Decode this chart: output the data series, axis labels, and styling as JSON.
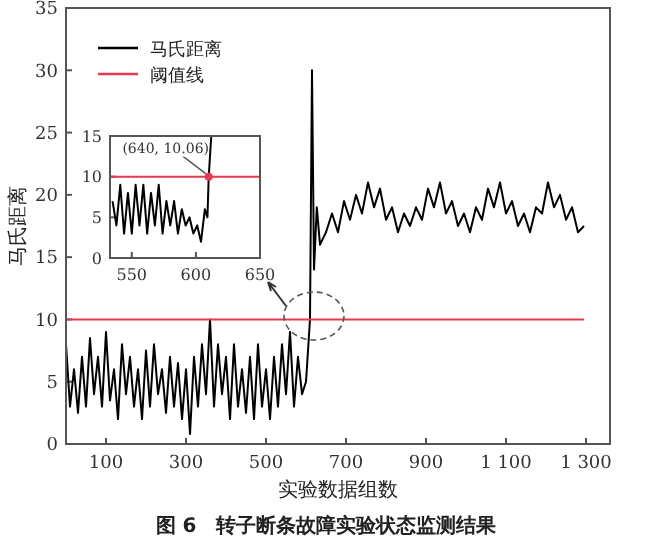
{
  "chart_data": [
    {
      "type": "line",
      "ylabel": "马氏距离",
      "xlabel": "实验数据组数",
      "annotations": [
        "图 6　转子断条故障实验状态监测结果"
      ],
      "xlim": [
        0,
        1360
      ],
      "ylim": [
        0,
        35
      ],
      "xticks": [
        100,
        300,
        500,
        700,
        900,
        {
          "value": 1100,
          "label": "1 100"
        },
        {
          "value": 1300,
          "label": "1 300"
        }
      ],
      "yticks": [
        0,
        5,
        10,
        15,
        20,
        25,
        30,
        35
      ],
      "legend": "top left",
      "grid": false,
      "series": [
        {
          "name": "马氏距离",
          "color": "#000000",
          "x": [
            0,
            10,
            20,
            30,
            40,
            50,
            60,
            70,
            80,
            90,
            100,
            110,
            120,
            130,
            140,
            150,
            160,
            170,
            180,
            190,
            200,
            210,
            220,
            230,
            240,
            250,
            260,
            270,
            280,
            290,
            300,
            310,
            320,
            330,
            340,
            350,
            360,
            370,
            380,
            390,
            400,
            410,
            420,
            430,
            440,
            450,
            460,
            470,
            480,
            490,
            500,
            510,
            520,
            530,
            540,
            550,
            560,
            570,
            580,
            590,
            600,
            610,
            615,
            620,
            627,
            635,
            650,
            665,
            680,
            695,
            710,
            725,
            740,
            755,
            770,
            785,
            800,
            815,
            830,
            845,
            860,
            875,
            890,
            905,
            920,
            935,
            950,
            965,
            980,
            995,
            1010,
            1025,
            1040,
            1055,
            1070,
            1085,
            1100,
            1115,
            1130,
            1145,
            1160,
            1175,
            1190,
            1205,
            1220,
            1235,
            1250,
            1265,
            1280,
            1295
          ],
          "values": [
            8,
            3,
            6,
            2.5,
            7,
            3,
            8.5,
            4,
            7,
            3,
            9,
            3.5,
            6,
            2,
            8,
            4,
            7,
            3,
            6,
            2,
            7.5,
            3,
            8,
            4,
            6,
            2.5,
            7,
            3,
            6.5,
            2,
            6,
            0.8,
            7,
            3,
            8,
            4,
            10,
            3,
            8,
            4,
            7,
            2,
            8,
            3,
            6,
            2.5,
            7,
            2,
            8,
            3,
            6,
            2,
            7,
            3,
            8,
            4,
            9,
            3,
            7,
            4,
            5,
            10,
            30,
            14,
            19,
            16,
            17,
            18.5,
            17,
            19.5,
            18,
            20,
            18.5,
            21,
            19,
            20.5,
            18,
            19,
            17,
            18.5,
            17.5,
            19,
            18,
            20.5,
            19,
            21,
            18.5,
            19.5,
            17.5,
            18.5,
            17,
            19,
            18,
            20.5,
            19,
            21,
            18.5,
            19.5,
            17.5,
            18.5,
            17,
            19,
            18.5,
            21,
            19,
            20,
            18,
            19,
            17,
            17.5
          ]
        },
        {
          "name": "阈值线",
          "color": "#e8384f",
          "x": [
            0,
            1295
          ],
          "values": [
            10,
            10
          ]
        }
      ]
    },
    {
      "type": "line",
      "xlim": [
        533,
        650
      ],
      "ylim": [
        0,
        15
      ],
      "xticks": [
        550,
        600,
        650
      ],
      "yticks": [
        0,
        5,
        10,
        15
      ],
      "grid": false,
      "annotations": [
        {
          "text": "(640, 10.06)",
          "x": 610,
          "y": 10
        }
      ],
      "series": [
        {
          "color": "#000000",
          "x": [
            535,
            538,
            541,
            544,
            547,
            550,
            553,
            556,
            559,
            562,
            565,
            568,
            571,
            574,
            577,
            580,
            583,
            586,
            589,
            592,
            595,
            598,
            601,
            604,
            607,
            609,
            610,
            612
          ],
          "values": [
            7,
            4,
            9,
            3,
            8,
            3,
            9,
            4,
            9,
            3,
            8,
            4,
            9,
            3,
            7,
            4,
            7,
            3,
            6,
            4,
            5,
            3,
            4,
            2,
            6,
            5,
            10,
            15
          ]
        },
        {
          "color": "#e8384f",
          "x": [
            533,
            650
          ],
          "values": [
            10,
            10
          ]
        }
      ]
    }
  ]
}
